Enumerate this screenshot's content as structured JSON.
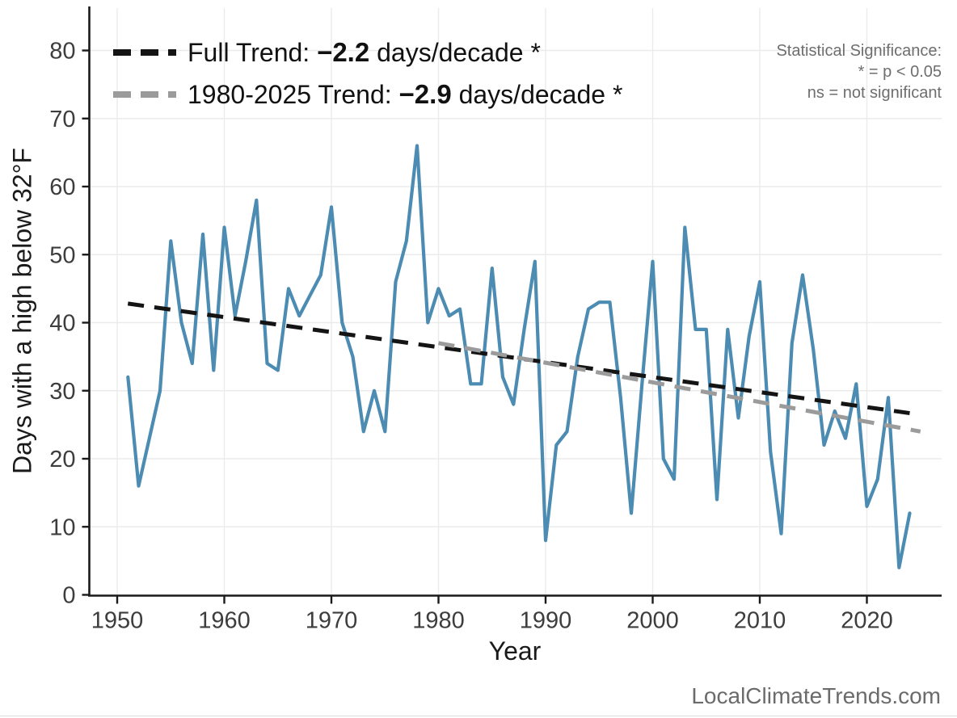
{
  "page": {
    "background": "#ffffff"
  },
  "watermark": "LocalClimateTrends.com",
  "stat_note": {
    "line1": "Statistical Significance:",
    "line2": "* = p < 0.05",
    "line3": "ns = not significant"
  },
  "axes": {
    "x_label": "Year",
    "y_label": "Days with a high below 32°F",
    "x_ticks": [
      1950,
      1960,
      1970,
      1980,
      1990,
      2000,
      2010,
      2020
    ],
    "y_ticks": [
      0,
      10,
      20,
      30,
      40,
      50,
      60,
      70,
      80
    ]
  },
  "legend": [
    {
      "prefix": "Full Trend: ",
      "value": "−2.2",
      "suffix": " days/decade *",
      "color": "#141414"
    },
    {
      "prefix": "1980-2025 Trend: ",
      "value": "−2.9",
      "suffix": " days/decade *",
      "color": "#9b9b9b"
    }
  ],
  "colors": {
    "series": "#4d8cb2",
    "full_trend": "#141414",
    "recent_trend": "#9b9b9b",
    "grid": "#ebebeb",
    "axis": "#1a1a1a",
    "tick_text": "#3d3d3d",
    "note_text": "#6e6e6e"
  },
  "chart_data": {
    "type": "line",
    "title": "",
    "xlabel": "Year",
    "ylabel": "Days with a high below 32°F",
    "x_range": [
      1950,
      2027
    ],
    "ylim": [
      0,
      80
    ],
    "grid": true,
    "legend_position": "top-left",
    "series": [
      {
        "name": "Days with a high below 32°F (annual)",
        "x": [
          1951,
          1952,
          1953,
          1954,
          1955,
          1956,
          1957,
          1958,
          1959,
          1960,
          1961,
          1962,
          1963,
          1964,
          1965,
          1966,
          1967,
          1968,
          1969,
          1970,
          1971,
          1972,
          1973,
          1974,
          1975,
          1976,
          1977,
          1978,
          1979,
          1980,
          1981,
          1982,
          1983,
          1984,
          1985,
          1986,
          1987,
          1988,
          1989,
          1990,
          1991,
          1992,
          1993,
          1994,
          1995,
          1996,
          1997,
          1998,
          1999,
          2000,
          2001,
          2002,
          2003,
          2004,
          2005,
          2006,
          2007,
          2008,
          2009,
          2010,
          2011,
          2012,
          2013,
          2014,
          2015,
          2016,
          2017,
          2018,
          2019,
          2020,
          2021,
          2022,
          2023,
          2024
        ],
        "values": [
          32,
          16,
          23,
          30,
          52,
          40,
          34,
          53,
          33,
          54,
          41,
          49,
          58,
          34,
          33,
          45,
          41,
          44,
          47,
          57,
          40,
          35,
          24,
          30,
          24,
          46,
          52,
          66,
          40,
          45,
          41,
          42,
          31,
          31,
          48,
          32,
          28,
          39,
          49,
          8,
          22,
          24,
          35,
          42,
          43,
          43,
          29,
          12,
          31,
          49,
          20,
          17,
          54,
          39,
          39,
          14,
          39,
          26,
          38,
          46,
          21,
          9,
          37,
          47,
          36,
          22,
          27,
          23,
          31,
          13,
          17,
          29,
          4,
          12
        ]
      }
    ],
    "trend_lines": [
      {
        "name": "Full Trend",
        "slope_per_decade": -2.2,
        "significant": true,
        "x": [
          1951,
          2024
        ],
        "values": [
          42.8,
          26.7
        ],
        "style": "dashed",
        "color": "#141414"
      },
      {
        "name": "1980-2025 Trend",
        "slope_per_decade": -2.9,
        "significant": true,
        "x": [
          1980,
          2025
        ],
        "values": [
          37.0,
          24.0
        ],
        "style": "dashed",
        "color": "#9b9b9b"
      }
    ]
  }
}
